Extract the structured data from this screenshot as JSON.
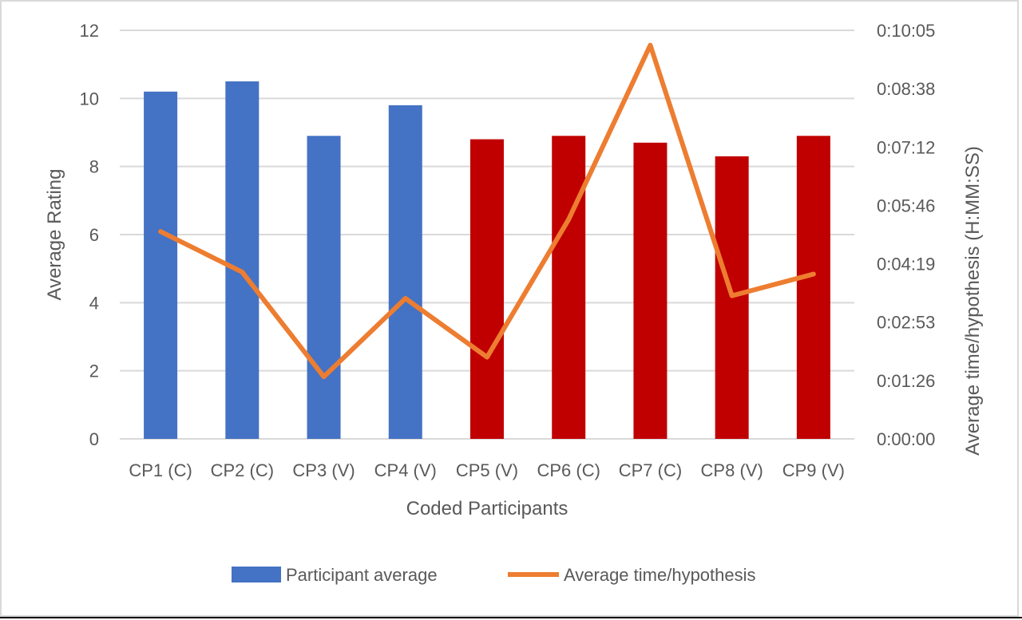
{
  "chart_data": {
    "type": "bar",
    "categories": [
      "CP1 (C)",
      "CP2 (C)",
      "CP3 (V)",
      "CP4 (V)",
      "CP5 (V)",
      "CP6 (C)",
      "CP7 (C)",
      "CP8 (V)",
      "CP9 (V)"
    ],
    "series": [
      {
        "name": "Participant average",
        "type": "bar",
        "axis": "left",
        "values": [
          10.2,
          10.5,
          8.9,
          9.8,
          8.8,
          8.9,
          8.7,
          8.3,
          8.9
        ],
        "bar_colors": [
          "#4472C4",
          "#4472C4",
          "#4472C4",
          "#4472C4",
          "#C00000",
          "#C00000",
          "#C00000",
          "#C00000",
          "#C00000"
        ]
      },
      {
        "name": "Average time/hypothesis",
        "type": "line",
        "axis": "right",
        "color": "#ED7D31",
        "values_hmmss": [
          "0:05:07",
          "0:04:07",
          "0:01:32",
          "0:03:28",
          "0:02:01",
          "0:05:25",
          "0:09:43",
          "0:03:32",
          "0:04:04"
        ],
        "values_seconds": [
          307,
          247,
          92,
          208,
          121,
          325,
          583,
          212,
          244
        ]
      }
    ],
    "title": "",
    "xlabel": "Coded Participants",
    "ylabel": "Average Rating",
    "y2label": "Average time/hypothesis (H:MM:SS)",
    "ylim": [
      0,
      12
    ],
    "yticks": [
      "0",
      "2",
      "4",
      "6",
      "8",
      "10",
      "12"
    ],
    "y2lim_seconds": [
      0,
      605
    ],
    "y2ticks": [
      "0:00:00",
      "0:01:26",
      "0:02:53",
      "0:04:19",
      "0:05:46",
      "0:07:12",
      "0:08:38",
      "0:10:05"
    ],
    "grid": true,
    "legend_position": "bottom",
    "legend": [
      {
        "label": "Participant average",
        "color": "#4472C4",
        "kind": "bar"
      },
      {
        "label": "Average time/hypothesis",
        "color": "#ED7D31",
        "kind": "line"
      }
    ]
  }
}
